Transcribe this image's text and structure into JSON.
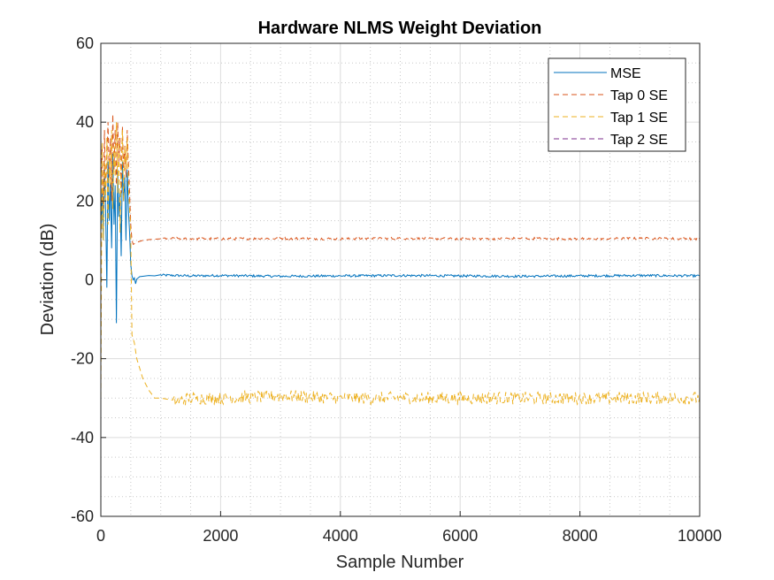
{
  "chart_data": {
    "type": "line",
    "title": "Hardware NLMS Weight Deviation",
    "xlabel": "Sample Number",
    "ylabel": "Deviation (dB)",
    "xlim": [
      0,
      10000
    ],
    "ylim": [
      -60,
      60
    ],
    "xticks": [
      0,
      2000,
      4000,
      6000,
      8000,
      10000
    ],
    "yticks": [
      -60,
      -40,
      -20,
      0,
      20,
      40,
      60
    ],
    "xtick_labels": [
      "0",
      "2000",
      "4000",
      "6000",
      "8000",
      "10000"
    ],
    "ytick_labels": [
      "-60",
      "-40",
      "-20",
      "0",
      "20",
      "40",
      "60"
    ],
    "grid": true,
    "minor_grid": true,
    "legend_location": "top-right",
    "series": [
      {
        "name": "MSE",
        "color": "#0072BD",
        "dash": "solid",
        "points": [
          [
            0,
            12
          ],
          [
            20,
            22
          ],
          [
            40,
            10
          ],
          [
            60,
            28
          ],
          [
            80,
            18
          ],
          [
            100,
            -2
          ],
          [
            120,
            30
          ],
          [
            140,
            15
          ],
          [
            160,
            25
          ],
          [
            180,
            8
          ],
          [
            200,
            32
          ],
          [
            220,
            14
          ],
          [
            240,
            24
          ],
          [
            260,
            -11
          ],
          [
            280,
            28
          ],
          [
            300,
            16
          ],
          [
            320,
            22
          ],
          [
            340,
            6
          ],
          [
            360,
            30
          ],
          [
            380,
            20
          ],
          [
            400,
            26
          ],
          [
            420,
            10
          ],
          [
            440,
            28
          ],
          [
            460,
            18
          ],
          [
            480,
            12
          ],
          [
            500,
            4
          ],
          [
            520,
            1
          ],
          [
            540,
            0
          ],
          [
            560,
            0.5
          ],
          [
            580,
            -1
          ],
          [
            600,
            0.2
          ],
          [
            650,
            0.8
          ],
          [
            700,
            0.9
          ],
          [
            800,
            1.1
          ],
          [
            900,
            1.0
          ],
          [
            1000,
            1.2
          ],
          [
            1500,
            1.0
          ],
          [
            2000,
            1.1
          ],
          [
            3000,
            0.9
          ],
          [
            4000,
            1.0
          ],
          [
            5000,
            1.1
          ],
          [
            6000,
            1.0
          ],
          [
            7000,
            0.9
          ],
          [
            8000,
            1.0
          ],
          [
            9000,
            1.1
          ],
          [
            10000,
            1.0
          ]
        ],
        "noise": 0.3
      },
      {
        "name": "Tap 0 SE",
        "color": "#D95319",
        "dash": "dashed",
        "points": [
          [
            0,
            25
          ],
          [
            20,
            34
          ],
          [
            40,
            18
          ],
          [
            60,
            38
          ],
          [
            80,
            22
          ],
          [
            100,
            30
          ],
          [
            120,
            40
          ],
          [
            140,
            26
          ],
          [
            160,
            36
          ],
          [
            180,
            20
          ],
          [
            200,
            42
          ],
          [
            220,
            28
          ],
          [
            240,
            38
          ],
          [
            260,
            24
          ],
          [
            280,
            40
          ],
          [
            300,
            30
          ],
          [
            320,
            36
          ],
          [
            340,
            22
          ],
          [
            360,
            39
          ],
          [
            380,
            28
          ],
          [
            400,
            34
          ],
          [
            420,
            26
          ],
          [
            440,
            38
          ],
          [
            460,
            30
          ],
          [
            480,
            22
          ],
          [
            500,
            14
          ],
          [
            520,
            10
          ],
          [
            540,
            9
          ],
          [
            600,
            9.5
          ],
          [
            700,
            10
          ],
          [
            800,
            10.2
          ],
          [
            1000,
            10.5
          ],
          [
            2000,
            10.4
          ],
          [
            3000,
            10.5
          ],
          [
            4000,
            10.4
          ],
          [
            5000,
            10.5
          ],
          [
            6000,
            10.4
          ],
          [
            7000,
            10.5
          ],
          [
            8000,
            10.4
          ],
          [
            9000,
            10.5
          ],
          [
            10000,
            10.4
          ]
        ],
        "noise": 0.3
      },
      {
        "name": "Tap 1 SE",
        "color": "#EDB120",
        "dash": "dashed",
        "points": [
          [
            0,
            -32
          ],
          [
            20,
            35
          ],
          [
            40,
            10
          ],
          [
            60,
            30
          ],
          [
            80,
            20
          ],
          [
            100,
            36
          ],
          [
            120,
            14
          ],
          [
            140,
            32
          ],
          [
            160,
            24
          ],
          [
            180,
            38
          ],
          [
            200,
            18
          ],
          [
            220,
            34
          ],
          [
            240,
            26
          ],
          [
            260,
            40
          ],
          [
            280,
            22
          ],
          [
            300,
            36
          ],
          [
            320,
            12
          ],
          [
            340,
            30
          ],
          [
            360,
            38
          ],
          [
            380,
            20
          ],
          [
            400,
            34
          ],
          [
            420,
            28
          ],
          [
            440,
            36
          ],
          [
            460,
            24
          ],
          [
            480,
            18
          ],
          [
            500,
            12
          ],
          [
            520,
            -14
          ],
          [
            560,
            -16
          ],
          [
            600,
            -20
          ],
          [
            700,
            -25
          ],
          [
            800,
            -28
          ],
          [
            900,
            -30
          ],
          [
            1000,
            -30
          ],
          [
            1200,
            -31
          ],
          [
            1500,
            -30
          ],
          [
            2000,
            -30
          ],
          [
            3000,
            -29.5
          ],
          [
            4000,
            -30
          ],
          [
            5000,
            -30
          ],
          [
            6000,
            -30
          ],
          [
            7000,
            -30
          ],
          [
            8000,
            -30
          ],
          [
            9000,
            -30
          ],
          [
            10000,
            -30
          ]
        ],
        "noise": 1.6
      },
      {
        "name": "Tap 2 SE",
        "color": "#7E2F8E",
        "dash": "dashed",
        "points": [
          [
            0,
            -60
          ],
          [
            10000,
            -60
          ]
        ],
        "noise": 0
      }
    ]
  }
}
